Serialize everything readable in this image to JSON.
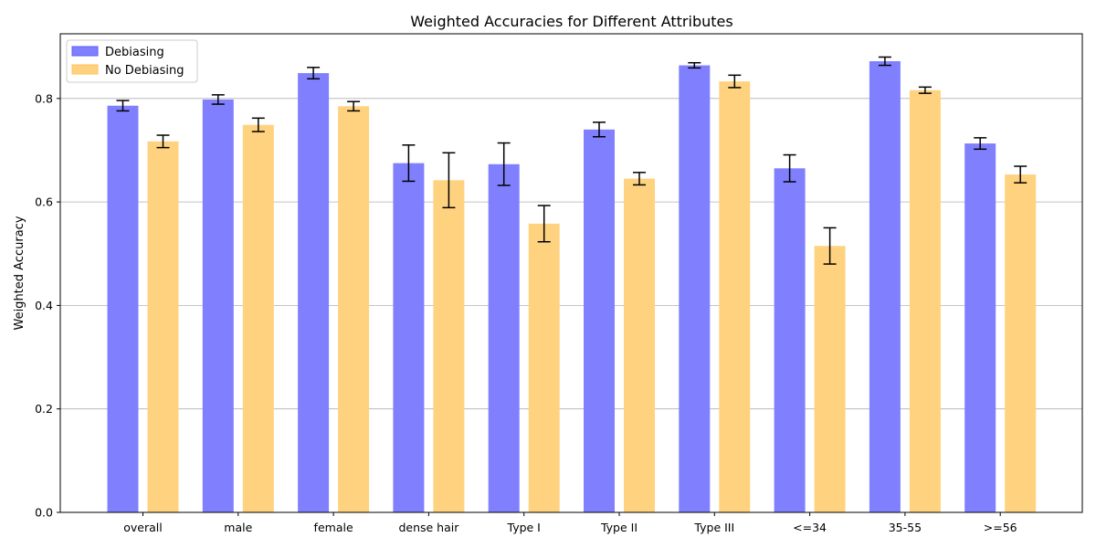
{
  "chart_data": {
    "type": "bar",
    "title": "Weighted Accuracies for Different Attributes",
    "xlabel": "",
    "ylabel": "Weighted Accuracy",
    "ylim": [
      0,
      0.925
    ],
    "yticks": [
      0.0,
      0.2,
      0.4,
      0.6,
      0.8
    ],
    "ytick_labels": [
      "0.0",
      "0.2",
      "0.4",
      "0.6",
      "0.8"
    ],
    "grid": "horizontal",
    "legend_position": "top-left",
    "categories": [
      "overall",
      "male",
      "female",
      "dense hair",
      "Type I",
      "Type II",
      "Type III",
      "<=34",
      "35-55",
      ">=56"
    ],
    "series": [
      {
        "name": "Debiasing",
        "color": "#8080ff",
        "edge_color": "#5a5aff",
        "values": [
          0.786,
          0.798,
          0.849,
          0.675,
          0.673,
          0.74,
          0.864,
          0.665,
          0.872,
          0.713
        ],
        "errors": [
          0.01,
          0.009,
          0.011,
          0.035,
          0.041,
          0.014,
          0.005,
          0.026,
          0.008,
          0.011
        ]
      },
      {
        "name": "No Debiasing",
        "color": "#ffd280",
        "edge_color": "#ffc05a",
        "values": [
          0.717,
          0.749,
          0.785,
          0.642,
          0.558,
          0.645,
          0.833,
          0.515,
          0.816,
          0.653
        ],
        "errors": [
          0.012,
          0.013,
          0.009,
          0.053,
          0.035,
          0.012,
          0.012,
          0.035,
          0.006,
          0.016
        ]
      }
    ]
  }
}
